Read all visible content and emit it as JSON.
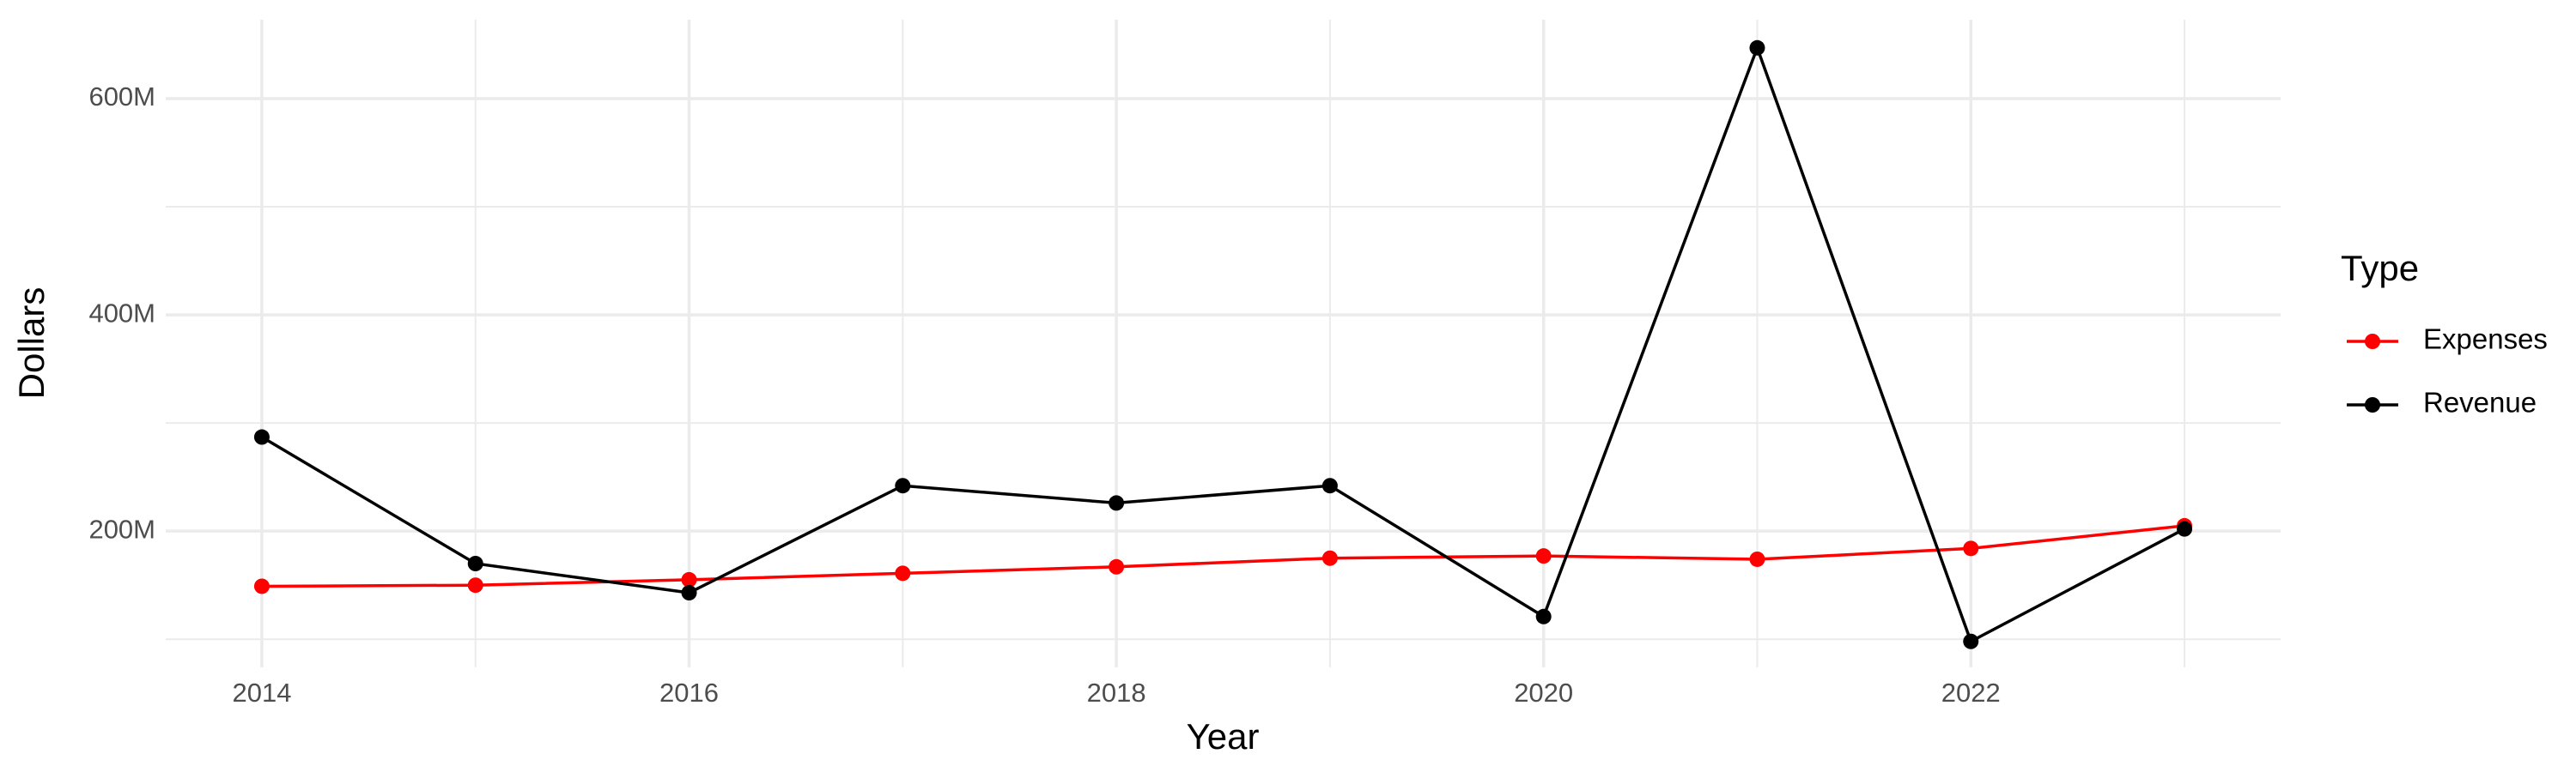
{
  "chart_data": {
    "type": "line",
    "x_label": "Year",
    "y_label": "Dollars",
    "legend_title": "Type",
    "legend_position": "right",
    "grid": true,
    "x": [
      2014,
      2015,
      2016,
      2017,
      2018,
      2019,
      2020,
      2021,
      2022,
      2023
    ],
    "series": [
      {
        "name": "Expenses",
        "color": "#ff0000",
        "values": [
          149000000,
          150000000,
          155000000,
          161000000,
          167000000,
          175000000,
          177000000,
          174000000,
          184000000,
          205000000
        ]
      },
      {
        "name": "Revenue",
        "color": "#000000",
        "values": [
          287000000,
          170000000,
          143000000,
          242000000,
          226000000,
          242000000,
          121000000,
          647000000,
          98000000,
          202000000
        ]
      }
    ],
    "xlim": [
      2013.55,
      2023.45
    ],
    "xticks": [
      2014,
      2016,
      2018,
      2020,
      2022
    ],
    "x_minor_ticks": [
      2015,
      2017,
      2019,
      2021,
      2023
    ],
    "ylim": [
      74000000,
      673000000
    ],
    "yticks": [
      {
        "value": 200000000,
        "label": "200M"
      },
      {
        "value": 400000000,
        "label": "400M"
      },
      {
        "value": 600000000,
        "label": "600M"
      }
    ],
    "y_minor_ticks": [
      100000000,
      300000000,
      500000000
    ]
  }
}
